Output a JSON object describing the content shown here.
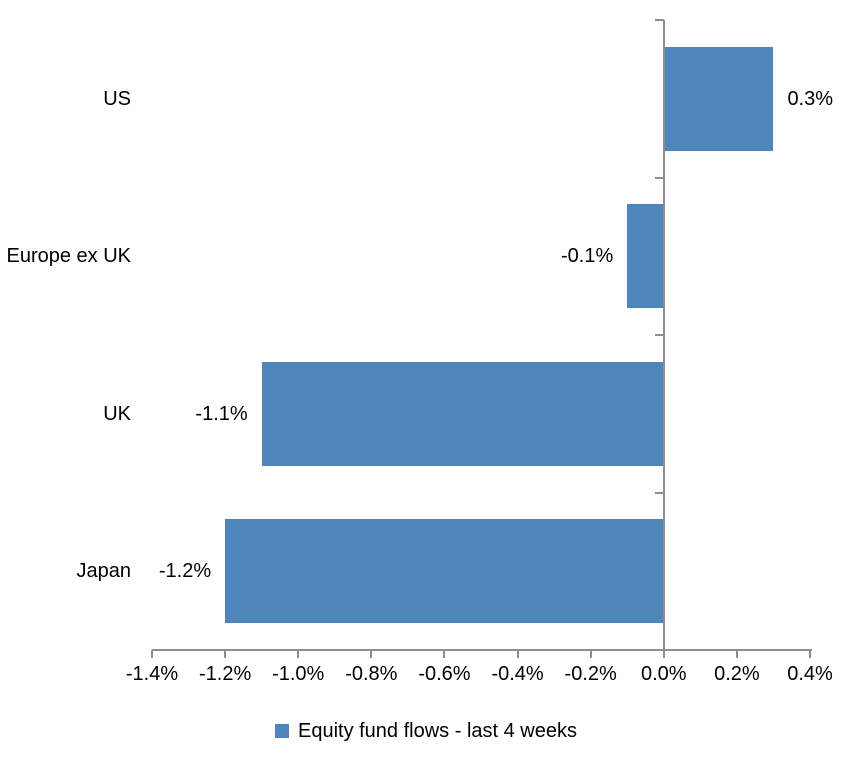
{
  "chart_data": {
    "type": "bar",
    "orientation": "horizontal",
    "categories": [
      "US",
      "Europe ex UK",
      "UK",
      "Japan"
    ],
    "series": [
      {
        "name": "Equity fund flows - last 4 weeks",
        "values": [
          0.3,
          -0.1,
          -1.1,
          -1.2
        ],
        "labels": [
          "0.3%",
          "-0.1%",
          "-1.1%",
          "-1.2%"
        ]
      }
    ],
    "legend_label": "Equity fund flows - last 4 weeks",
    "legend_position": "bottom",
    "xlim": [
      -1.4,
      0.4
    ],
    "x_tick_values": [
      -1.4,
      -1.2,
      -1.0,
      -0.8,
      -0.6,
      -0.4,
      -0.2,
      0.0,
      0.2,
      0.4
    ],
    "x_tick_labels": [
      "-1.4%",
      "-1.2%",
      "-1.0%",
      "-0.8%",
      "-0.6%",
      "-0.4%",
      "-0.2%",
      "0.0%",
      "0.2%",
      "0.4%"
    ],
    "grid": false,
    "bar_color": "#4E86BC",
    "axis_color": "#8E8E8E",
    "text_color": "#000000",
    "background": "#FFFFFF"
  }
}
